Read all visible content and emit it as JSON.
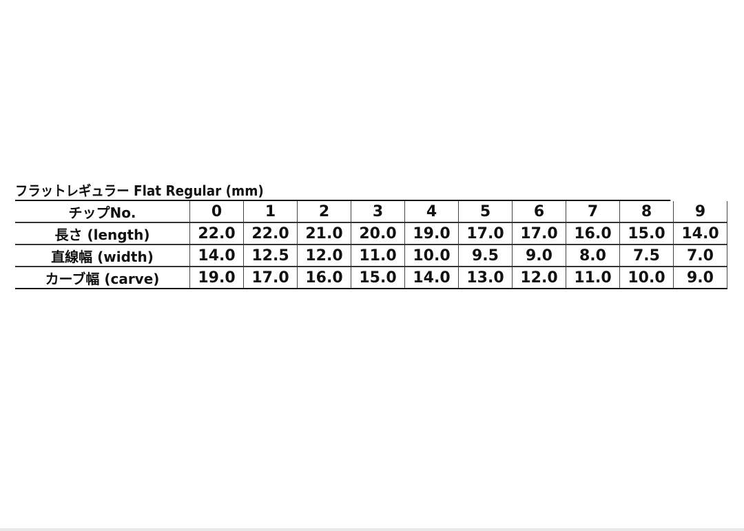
{
  "title": "フラットレギュラー Flat Regular (mm)",
  "headers": [
    "チップNo.",
    "0",
    "1",
    "2",
    "3",
    "4",
    "5",
    "6",
    "7",
    "8",
    "9"
  ],
  "rows": [
    {
      "label": "長さ (length)",
      "values": [
        "22.0",
        "22.0",
        "21.0",
        "20.0",
        "19.0",
        "17.0",
        "17.0",
        "16.0",
        "15.0",
        "14.0"
      ]
    },
    {
      "label": "直線幅 (width)",
      "values": [
        "14.0",
        "12.5",
        "12.0",
        "11.0",
        "10.0",
        "9.5",
        "9.0",
        "8.0",
        "7.5",
        "7.0"
      ]
    },
    {
      "label": "カーブ幅 (carve)",
      "values": [
        "19.0",
        "17.0",
        "16.0",
        "15.0",
        "14.0",
        "13.0",
        "12.0",
        "11.0",
        "10.0",
        "9.0"
      ]
    }
  ]
}
